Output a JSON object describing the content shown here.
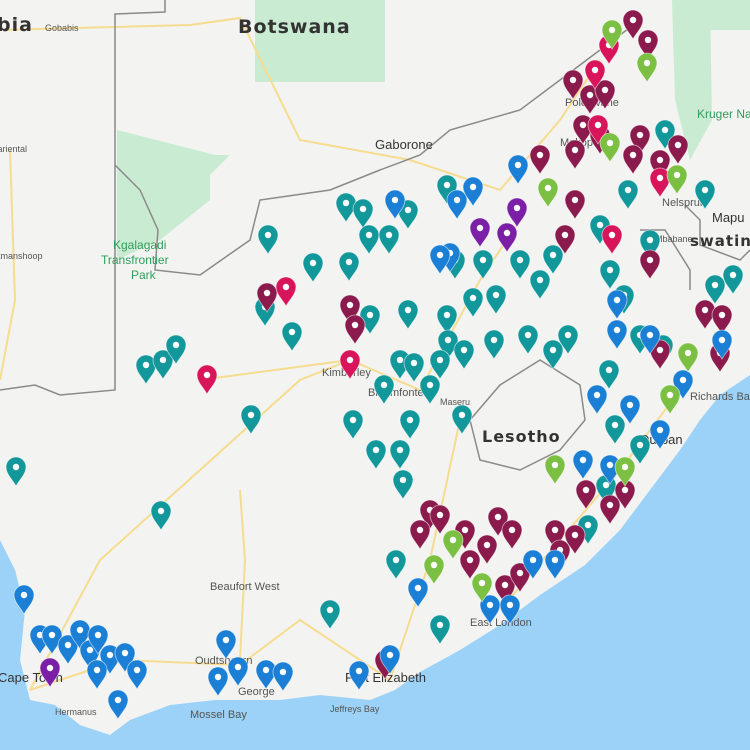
{
  "map": {
    "countries": {
      "namibia": "bia",
      "botswana": "Botswana",
      "lesotho": "Lesotho",
      "eswatini": "swatini",
      "mozambique": "Mapu"
    },
    "parks": {
      "kruger": "Kruger National Park",
      "kgalagadi_1": "Kgalagadi",
      "kgalagadi_2": "Transfrontier",
      "kgalagadi_3": "Park"
    },
    "places": {
      "gobabis": "Gobabis",
      "mariental": "Mariental",
      "keetmanshoop": "Keetmanshoop",
      "gaborone": "Gaborone",
      "polokwane": "Polokwane",
      "mokopane": "Mokopane",
      "nelspruit": "Nelspruit",
      "mbabane": "Mbabane",
      "kimberley": "Kimberley",
      "bloemfontein": "Bloemfontein",
      "maseru": "Maseru",
      "durban": "Durban",
      "richards_bay": "Richards Bay",
      "beaufort_west": "Beaufort West",
      "oudtshoorn": "Oudtshoorn",
      "george": "George",
      "mossel_bay": "Mossel Bay",
      "hermanus": "Hermanus",
      "cape_town": "Cape Town",
      "port_elizabeth": "Port Elizabeth",
      "jeffreys_bay": "Jeffreys Bay",
      "east_london": "East London"
    },
    "colors": {
      "land": "#f3f3f1",
      "water": "#9cd2f7",
      "park": "#c9ebd2",
      "road": "#f6dc8f",
      "border": "#8a8a8a",
      "marker_teal": "#12979a",
      "marker_blue": "#1b7fd6",
      "marker_maroon": "#8b1a4d",
      "marker_crimson": "#d8145a",
      "marker_green": "#7cc043",
      "marker_purple": "#7a1fa6"
    },
    "marker_icon": "map-pin-icon"
  }
}
